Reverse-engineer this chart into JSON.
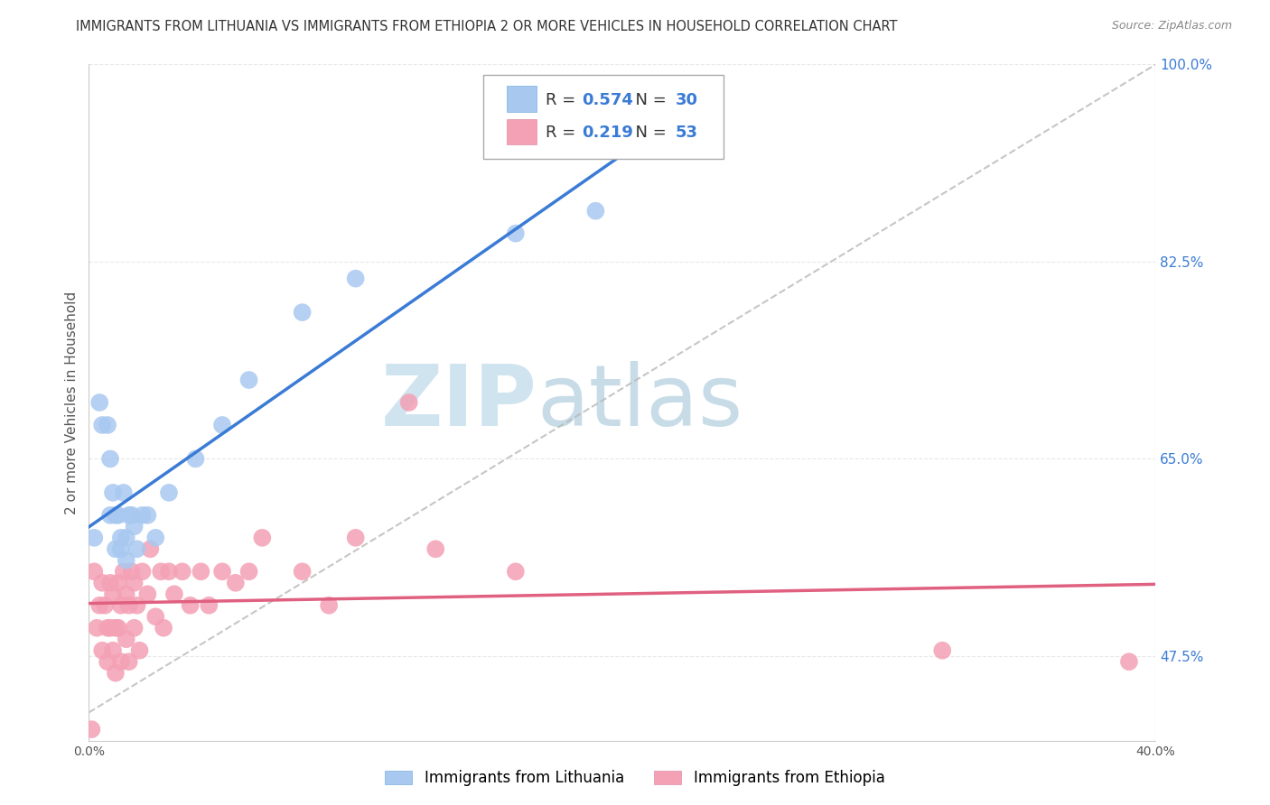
{
  "title": "IMMIGRANTS FROM LITHUANIA VS IMMIGRANTS FROM ETHIOPIA 2 OR MORE VEHICLES IN HOUSEHOLD CORRELATION CHART",
  "source": "Source: ZipAtlas.com",
  "ylabel": "2 or more Vehicles in Household",
  "xmin": 0.0,
  "xmax": 0.4,
  "ymin": 0.4,
  "ymax": 1.0,
  "lithuania_R": "0.574",
  "lithuania_N": "30",
  "ethiopia_R": "0.219",
  "ethiopia_N": "53",
  "lithuania_color": "#a8c8f0",
  "ethiopia_color": "#f4a0b5",
  "blue_line_color": "#3a7bd5",
  "pink_line_color": "#e06080",
  "dashed_line_color": "#b8b8b8",
  "lithuania_x": [
    0.002,
    0.004,
    0.005,
    0.007,
    0.008,
    0.008,
    0.009,
    0.01,
    0.01,
    0.011,
    0.012,
    0.012,
    0.013,
    0.014,
    0.014,
    0.015,
    0.016,
    0.017,
    0.018,
    0.02,
    0.022,
    0.025,
    0.03,
    0.04,
    0.05,
    0.06,
    0.08,
    0.1,
    0.16,
    0.19
  ],
  "lithuania_y": [
    0.58,
    0.7,
    0.68,
    0.68,
    0.65,
    0.6,
    0.62,
    0.6,
    0.57,
    0.6,
    0.58,
    0.57,
    0.62,
    0.58,
    0.56,
    0.6,
    0.6,
    0.59,
    0.57,
    0.6,
    0.6,
    0.58,
    0.62,
    0.65,
    0.68,
    0.72,
    0.78,
    0.81,
    0.85,
    0.87
  ],
  "ethiopia_x": [
    0.001,
    0.002,
    0.003,
    0.004,
    0.005,
    0.005,
    0.006,
    0.007,
    0.007,
    0.008,
    0.008,
    0.009,
    0.009,
    0.01,
    0.01,
    0.011,
    0.011,
    0.012,
    0.012,
    0.013,
    0.014,
    0.014,
    0.015,
    0.015,
    0.016,
    0.017,
    0.017,
    0.018,
    0.019,
    0.02,
    0.022,
    0.023,
    0.025,
    0.027,
    0.028,
    0.03,
    0.032,
    0.035,
    0.038,
    0.042,
    0.045,
    0.05,
    0.055,
    0.06,
    0.065,
    0.08,
    0.09,
    0.1,
    0.12,
    0.13,
    0.16,
    0.32,
    0.39
  ],
  "ethiopia_y": [
    0.41,
    0.55,
    0.5,
    0.52,
    0.54,
    0.48,
    0.52,
    0.5,
    0.47,
    0.54,
    0.5,
    0.53,
    0.48,
    0.5,
    0.46,
    0.54,
    0.5,
    0.52,
    0.47,
    0.55,
    0.53,
    0.49,
    0.52,
    0.47,
    0.55,
    0.54,
    0.5,
    0.52,
    0.48,
    0.55,
    0.53,
    0.57,
    0.51,
    0.55,
    0.5,
    0.55,
    0.53,
    0.55,
    0.52,
    0.55,
    0.52,
    0.55,
    0.54,
    0.55,
    0.58,
    0.55,
    0.52,
    0.58,
    0.7,
    0.57,
    0.55,
    0.48,
    0.47
  ],
  "ytick_labels": [
    "100.0%",
    "82.5%",
    "65.0%",
    "47.5%"
  ],
  "ytick_values": [
    1.0,
    0.825,
    0.65,
    0.475
  ],
  "xtick_labels": [
    "0.0%",
    "",
    "",
    "",
    "",
    "",
    "",
    "",
    "40.0%"
  ],
  "xtick_values": [
    0.0,
    0.05,
    0.1,
    0.15,
    0.2,
    0.25,
    0.3,
    0.35,
    0.4
  ],
  "background_color": "#ffffff",
  "plot_bg_color": "#ffffff",
  "grid_color": "#e8e8e8",
  "watermark_zip": "ZIP",
  "watermark_atlas": "atlas",
  "watermark_color": "#d0e4f0",
  "title_fontsize": 10.5,
  "axis_label_fontsize": 11,
  "tick_fontsize": 10,
  "legend_fontsize": 12,
  "source_fontsize": 9
}
